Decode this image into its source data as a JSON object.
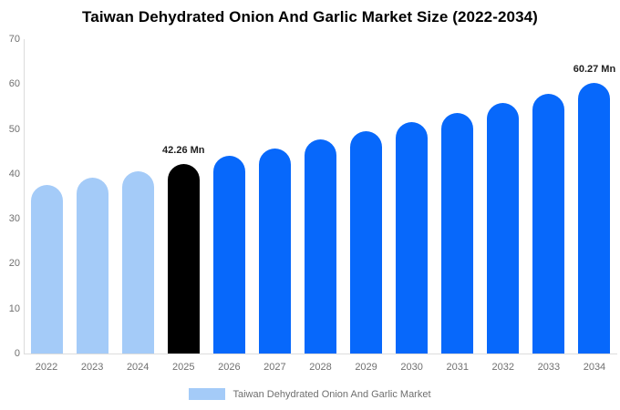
{
  "chart_data": {
    "type": "bar",
    "title": "Taiwan Dehydrated Onion And Garlic Market Size (2022-2034)",
    "categories": [
      "2022",
      "2023",
      "2024",
      "2025",
      "2026",
      "2027",
      "2028",
      "2029",
      "2030",
      "2031",
      "2032",
      "2033",
      "2034"
    ],
    "values": [
      37.5,
      39.1,
      40.6,
      42.26,
      44.0,
      45.7,
      47.6,
      49.5,
      51.5,
      53.5,
      55.7,
      57.9,
      60.27
    ],
    "unit": "Mn",
    "ylim": [
      0,
      70
    ],
    "yticks": [
      0,
      10,
      20,
      30,
      40,
      50,
      60,
      70
    ],
    "grid": false,
    "bar_segments": [
      "historical",
      "historical",
      "historical",
      "highlight",
      "forecast",
      "forecast",
      "forecast",
      "forecast",
      "forecast",
      "forecast",
      "forecast",
      "forecast",
      "forecast"
    ],
    "annotations": [
      {
        "category": "2025",
        "text": "42.26 Mn"
      },
      {
        "category": "2034",
        "text": "60.27 Mn"
      }
    ],
    "legend": {
      "position": "bottom",
      "entries": [
        {
          "label": "Taiwan Dehydrated Onion And Garlic Market",
          "swatch_color": "#a4cbf8"
        }
      ]
    },
    "colors": {
      "historical": "#a4cbf8",
      "highlight": "#000000",
      "forecast": "#0768fb",
      "axis_line": "#dcdcdc",
      "tick_text": "#707070",
      "annotation_text": "#1f1f1f",
      "title_text": "#000000",
      "legend_text": "#6f6f6f"
    }
  }
}
